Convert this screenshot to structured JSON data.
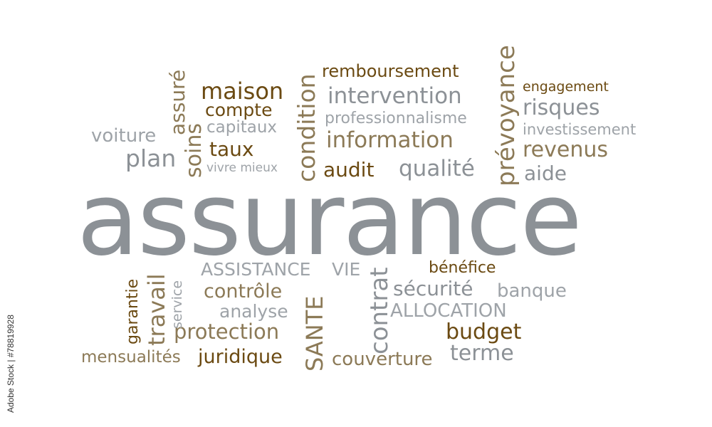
{
  "side_label": "Adobe Stock | #78819928",
  "colors": {
    "gray": "#8c9196",
    "tan": "#8c7a57",
    "brown": "#6b4a12"
  },
  "words": {
    "assurance": "assurance",
    "remboursement": "remboursement",
    "intervention": "intervention",
    "professionnalisme": "professionnalisme",
    "information": "information",
    "audit": "audit",
    "qualite": "qualité",
    "prevoyance": "prévoyance",
    "engagement": "engagement",
    "risques": "risques",
    "investissement": "investissement",
    "revenus": "revenus",
    "aide": "aide",
    "maison": "maison",
    "compte": "compte",
    "capitaux": "capitaux",
    "taux": "taux",
    "vivre_mieux": "vivre mieux",
    "condition": "condition",
    "assure": "assuré",
    "soins": "soins",
    "voiture": "voiture",
    "plan": "plan",
    "assistance": "ASSISTANCE",
    "vie": "VIE",
    "controle": "contrôle",
    "analyse": "analyse",
    "protection": "protection",
    "juridique": "juridique",
    "mensualites": "mensualités",
    "garantie": "garantie",
    "travail": "travail",
    "service": "service",
    "sante": "SANTE",
    "contrat": "contrat",
    "couverture": "couverture",
    "benefice": "bénéfice",
    "securite": "sécurité",
    "banque": "banque",
    "allocation": "ALLOCATION",
    "budget": "budget",
    "terme": "terme"
  }
}
